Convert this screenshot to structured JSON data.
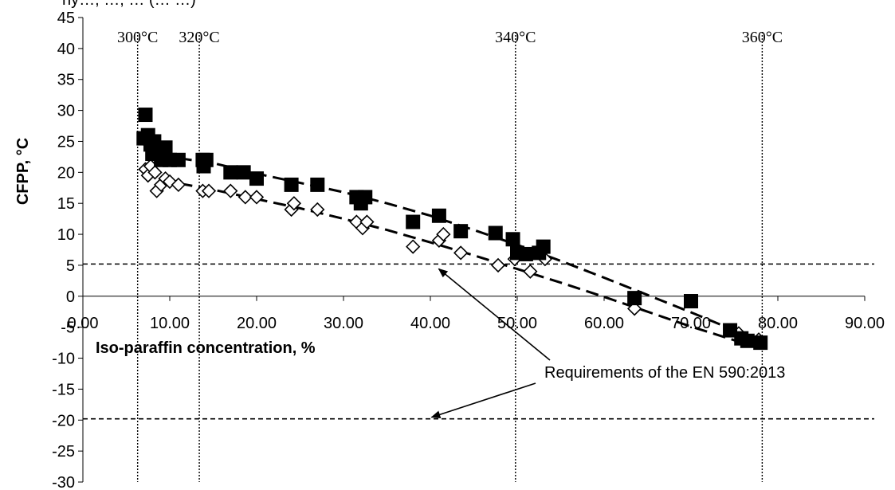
{
  "chart_data": {
    "type": "scatter",
    "title": "",
    "xlabel": "Iso-paraffin concentration, %",
    "ylabel": "CFPP, °C",
    "xlim": [
      0,
      90
    ],
    "ylim": [
      -30,
      45
    ],
    "x_tick_labels": [
      "0.00",
      "10.00",
      "20.00",
      "30.00",
      "40.00",
      "50.00",
      "60.00",
      "70.00",
      "80.00",
      "90.00"
    ],
    "y_tick_labels": [
      "-30",
      "-25",
      "-20",
      "-15",
      "-10",
      "-5",
      "0",
      "5",
      "10",
      "15",
      "20",
      "25",
      "30",
      "35",
      "40",
      "45"
    ],
    "grid": false,
    "series": [
      {
        "marker": "filled-square",
        "color": "#000000",
        "points": [
          [
            7.2,
            29.3
          ],
          [
            7.0,
            25.5
          ],
          [
            7.5,
            26.0
          ],
          [
            7.8,
            24.5
          ],
          [
            8.2,
            25.0
          ],
          [
            8.0,
            23.0
          ],
          [
            9.5,
            24.0
          ],
          [
            9.0,
            22.0
          ],
          [
            10.0,
            22.0
          ],
          [
            11.0,
            22.0
          ],
          [
            13.8,
            22.0
          ],
          [
            14.2,
            22.0
          ],
          [
            13.9,
            21.0
          ],
          [
            17.0,
            20.0
          ],
          [
            18.5,
            20.0
          ],
          [
            20.0,
            19.0
          ],
          [
            24.0,
            18.0
          ],
          [
            27.0,
            18.0
          ],
          [
            31.5,
            16.0
          ],
          [
            32.5,
            16.0
          ],
          [
            32.0,
            15.0
          ],
          [
            38.0,
            12.0
          ],
          [
            41.0,
            13.0
          ],
          [
            43.5,
            10.5
          ],
          [
            47.5,
            10.2
          ],
          [
            49.5,
            9.2
          ],
          [
            50.0,
            7.0
          ],
          [
            51.0,
            6.8
          ],
          [
            52.5,
            7.0
          ],
          [
            53.0,
            8.0
          ],
          [
            63.5,
            -0.3
          ],
          [
            70.0,
            -0.8
          ],
          [
            74.5,
            -5.5
          ],
          [
            75.8,
            -6.8
          ],
          [
            78.0,
            -7.5
          ],
          [
            76.5,
            -7.2
          ]
        ]
      },
      {
        "marker": "open-diamond",
        "color": "#000000",
        "points": [
          [
            7.2,
            20.5
          ],
          [
            7.5,
            19.5
          ],
          [
            7.8,
            21.0
          ],
          [
            8.3,
            20.0
          ],
          [
            8.5,
            17.0
          ],
          [
            9.0,
            18.0
          ],
          [
            9.5,
            19.0
          ],
          [
            10.0,
            18.5
          ],
          [
            11.0,
            18.0
          ],
          [
            13.8,
            17.0
          ],
          [
            14.5,
            17.0
          ],
          [
            17.0,
            17.0
          ],
          [
            18.7,
            16.0
          ],
          [
            20.0,
            16.0
          ],
          [
            24.0,
            14.0
          ],
          [
            24.3,
            15.0
          ],
          [
            27.0,
            14.0
          ],
          [
            31.5,
            12.0
          ],
          [
            32.2,
            11.0
          ],
          [
            32.7,
            12.0
          ],
          [
            38.0,
            8.0
          ],
          [
            41.0,
            9.0
          ],
          [
            41.5,
            10.0
          ],
          [
            43.5,
            7.0
          ],
          [
            47.8,
            5.0
          ],
          [
            49.7,
            6.0
          ],
          [
            51.5,
            4.0
          ],
          [
            53.2,
            6.0
          ],
          [
            63.5,
            -2.0
          ],
          [
            75.5,
            -6.0
          ],
          [
            77.8,
            -7.0
          ],
          [
            76.0,
            -7.0
          ]
        ]
      }
    ],
    "trendlines": [
      {
        "style": "dashed",
        "points": [
          [
            7,
            24.5
          ],
          [
            10,
            22.5
          ],
          [
            15,
            21.5
          ],
          [
            20,
            19.8
          ],
          [
            25,
            18.3
          ],
          [
            30,
            16.8
          ],
          [
            35,
            15.0
          ],
          [
            40,
            13.0
          ],
          [
            45,
            10.7
          ],
          [
            50,
            8.3
          ],
          [
            55,
            5.7
          ],
          [
            60,
            3.0
          ],
          [
            65,
            0.2
          ],
          [
            70,
            -2.6
          ],
          [
            75,
            -5.5
          ],
          [
            78,
            -7.2
          ]
        ]
      },
      {
        "style": "dashed",
        "points": [
          [
            7,
            20.2
          ],
          [
            10,
            18.5
          ],
          [
            15,
            17.2
          ],
          [
            20,
            15.7
          ],
          [
            25,
            14.2
          ],
          [
            30,
            12.5
          ],
          [
            35,
            10.7
          ],
          [
            40,
            8.7
          ],
          [
            45,
            6.6
          ],
          [
            50,
            4.4
          ],
          [
            55,
            2.2
          ],
          [
            60,
            -0.1
          ],
          [
            65,
            -2.5
          ],
          [
            70,
            -4.9
          ],
          [
            75,
            -7.1
          ],
          [
            78,
            -8.2
          ]
        ]
      }
    ],
    "reference_lines_y": [
      5.2,
      -19.8
    ],
    "vertical_markers": [
      {
        "x": 6.3,
        "label": "300°C"
      },
      {
        "x": 13.4,
        "label": "320°C"
      },
      {
        "x": 49.8,
        "label": "340°C"
      },
      {
        "x": 78.2,
        "label": "360°C"
      }
    ],
    "annotation": {
      "text": "Requirements of the EN 590:2013",
      "arrow_targets": [
        [
          40.5,
          5.2
        ],
        [
          40.5,
          -19.8
        ]
      ]
    },
    "header_fragment": "ny…, …, …    (…              …)"
  }
}
